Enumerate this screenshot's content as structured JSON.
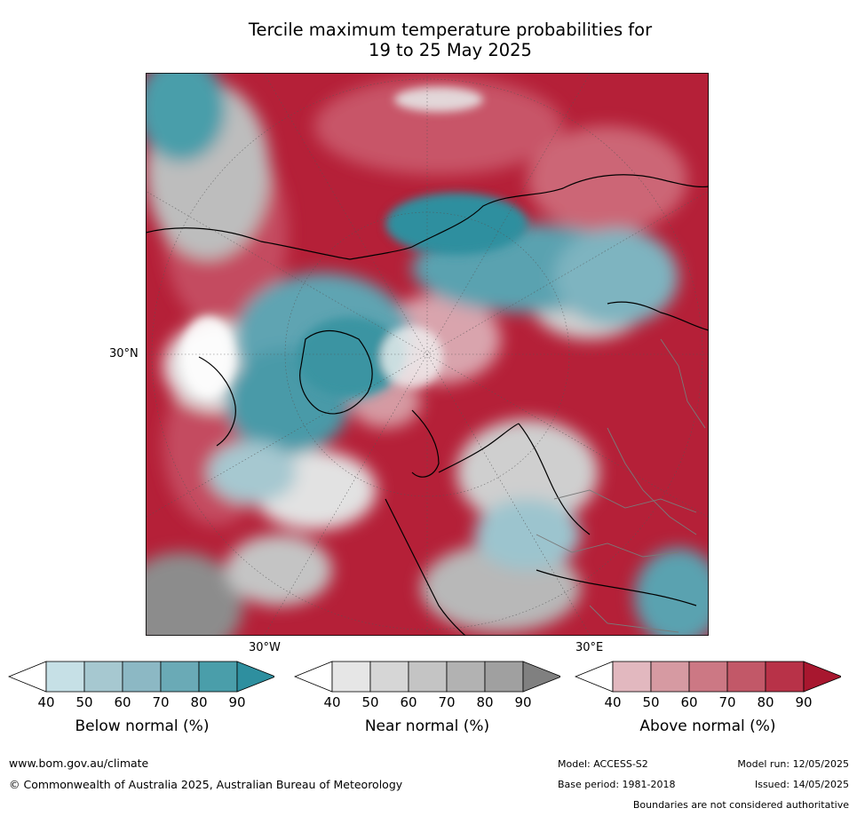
{
  "title": {
    "line1": "Tercile maximum temperature probabilities for",
    "line2": "19 to 25 May 2025"
  },
  "map": {
    "projection": "north-polar-stereographic",
    "lat_label": "30°N",
    "lon_labels": [
      "30°W",
      "30°E"
    ]
  },
  "legend": {
    "ticks": [
      "40",
      "50",
      "60",
      "70",
      "80",
      "90"
    ],
    "bars": [
      {
        "label": "Below normal (%)",
        "colors": [
          "#ffffff",
          "#c6e0e6",
          "#a6c8d0",
          "#8cb8c4",
          "#6aaab6",
          "#4a9eaa",
          "#2e8f9f"
        ]
      },
      {
        "label": "Near normal (%)",
        "colors": [
          "#ffffff",
          "#e6e6e6",
          "#d6d6d6",
          "#c4c4c4",
          "#b2b2b2",
          "#a0a0a0",
          "#808080"
        ]
      },
      {
        "label": "Above normal (%)",
        "colors": [
          "#ffffff",
          "#e2b8bf",
          "#d69aa2",
          "#cc7884",
          "#c25868",
          "#b83248",
          "#a8172f"
        ]
      }
    ]
  },
  "footer": {
    "url": "www.bom.gov.au/climate",
    "copyright": "© Commonwealth of Australia 2025, Australian Bureau of Meteorology",
    "model": "Model: ACCESS-S2",
    "base_period": "Base period: 1981-2018",
    "model_run": "Model run: 12/05/2025",
    "issued": "Issued: 14/05/2025",
    "disclaimer": "Boundaries are not considered authoritative"
  }
}
